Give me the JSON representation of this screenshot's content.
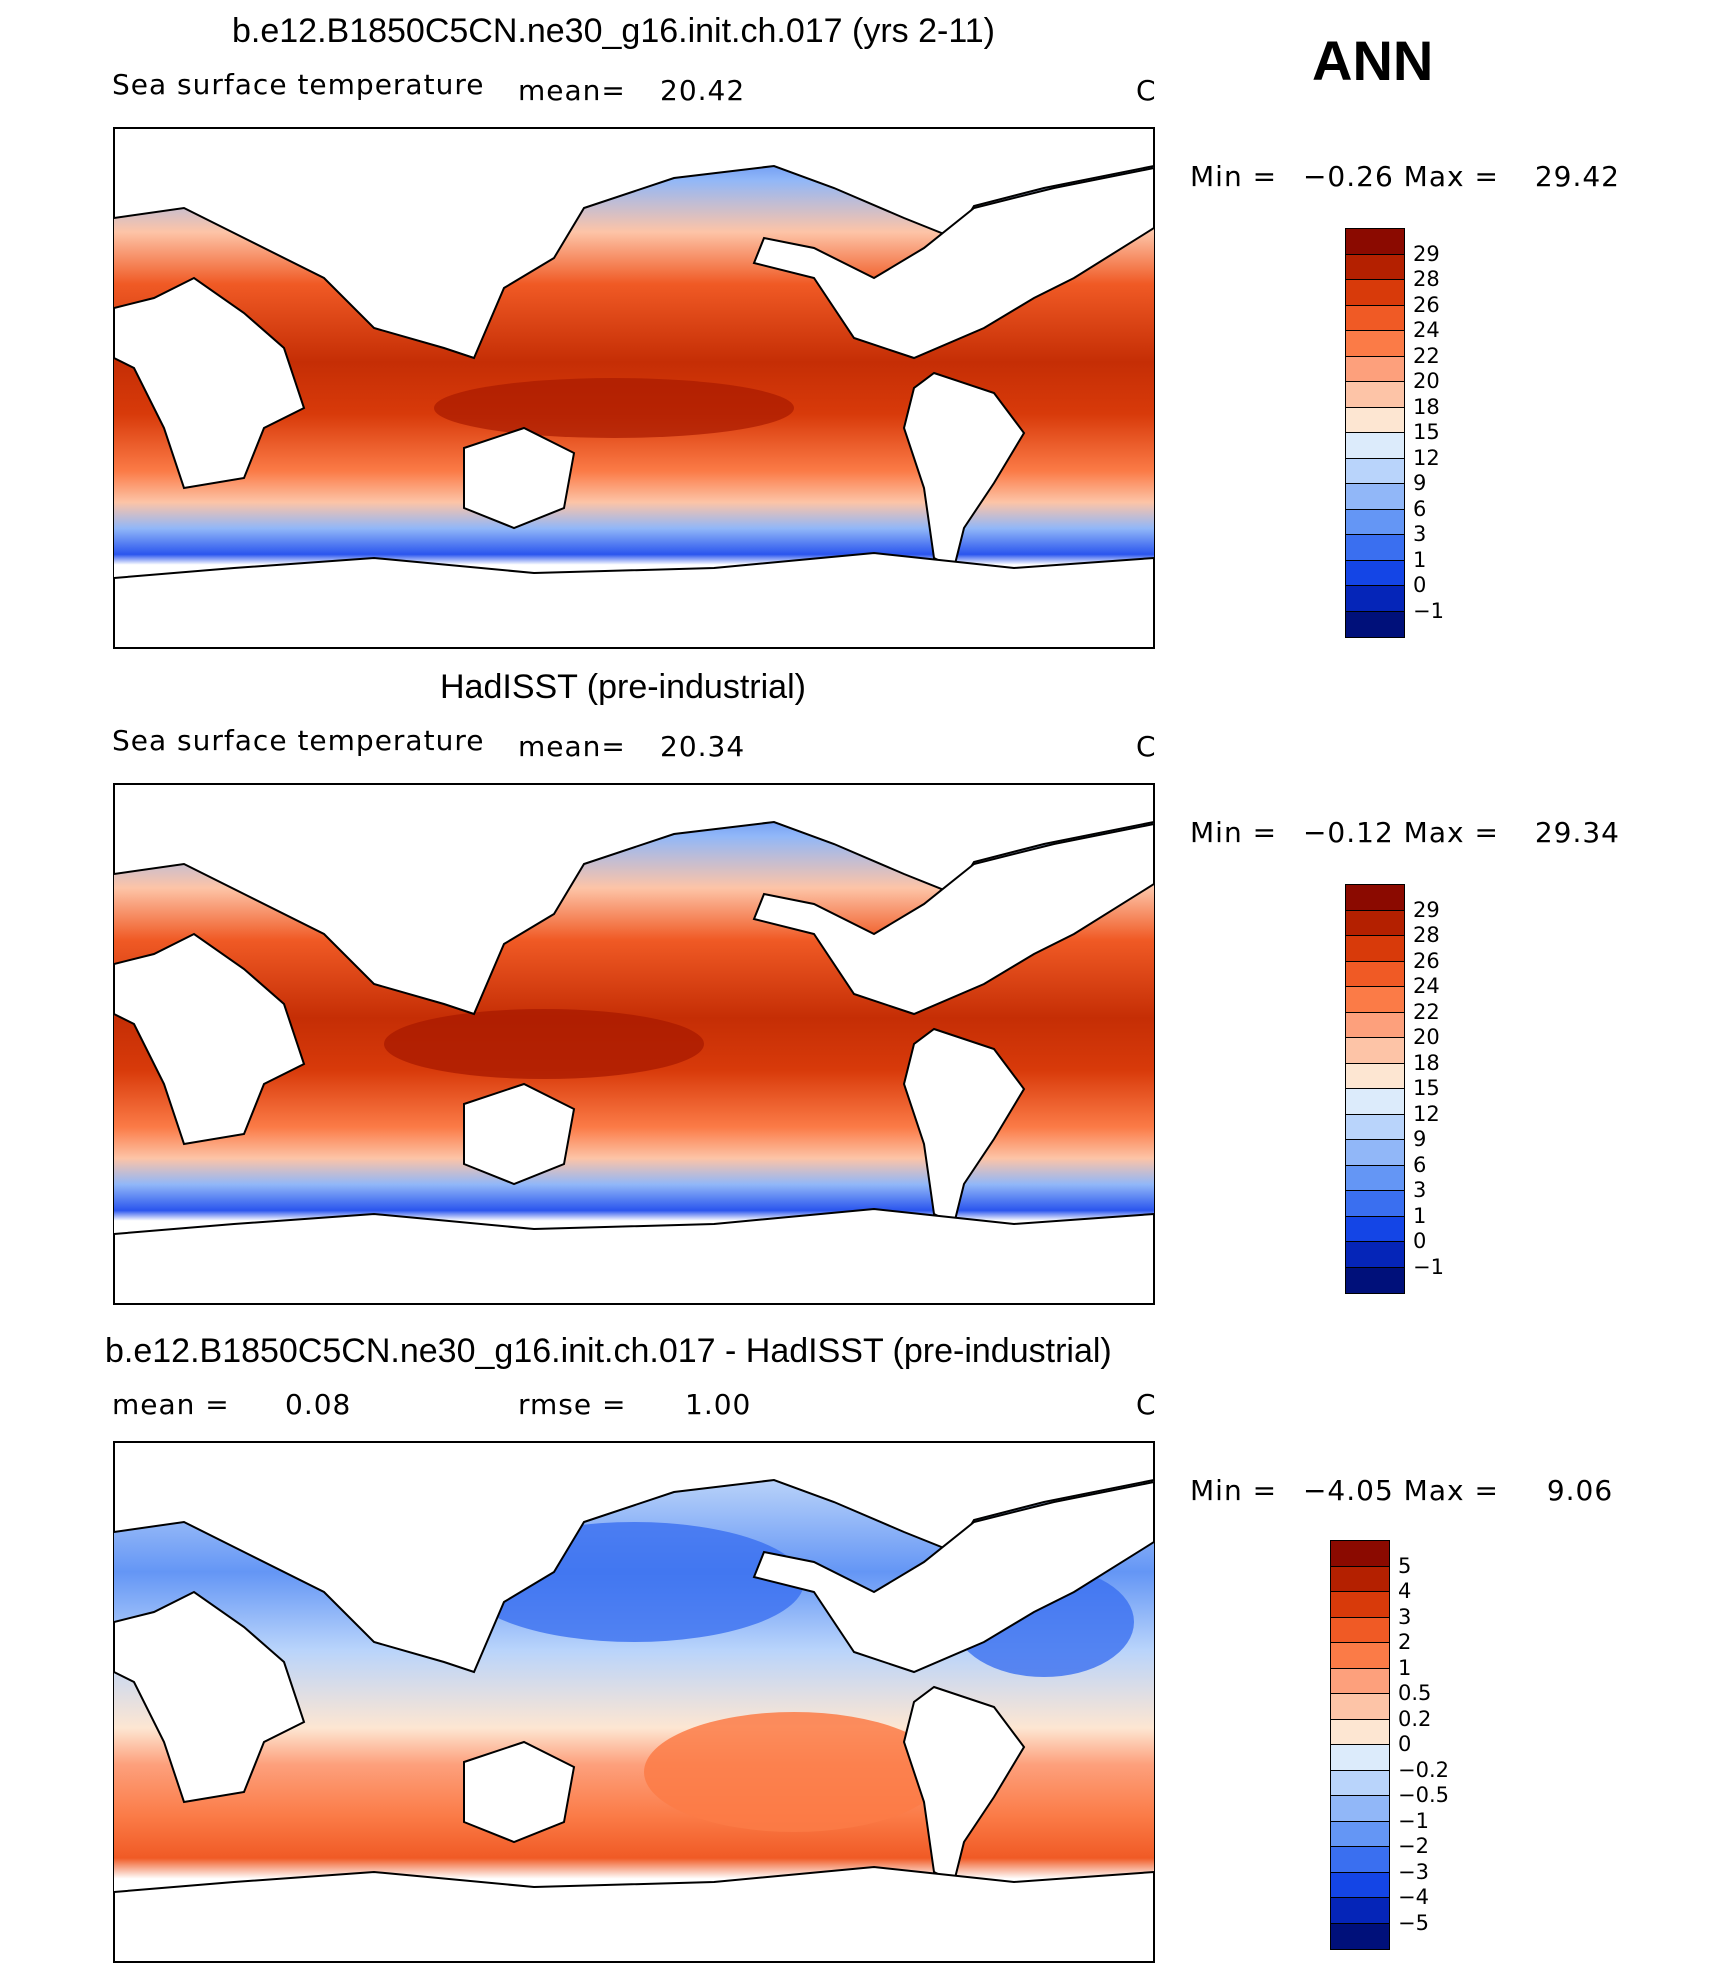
{
  "season": "ANN",
  "panels": [
    {
      "title": "b.e12.B1850C5CN.ne30_g16.init.ch.017 (yrs 2-11)",
      "variable": "Sea surface temperature",
      "stat1_label": "mean=",
      "stat1_value": "20.42",
      "units": "C",
      "minmax": {
        "min_label": "Min =",
        "min": "−0.26",
        "max_label": "Max =",
        "max": "29.42"
      },
      "colorbar": {
        "labels": [
          "29",
          "28",
          "26",
          "24",
          "22",
          "20",
          "18",
          "15",
          "12",
          "9",
          "6",
          "3",
          "1",
          "0",
          "−1"
        ],
        "colors": [
          "#8b0a00",
          "#b42000",
          "#d83a0a",
          "#f05a25",
          "#fb7b47",
          "#fda07c",
          "#fdc4a7",
          "#fde6d2",
          "#dcebfb",
          "#b9d4fb",
          "#91b7f8",
          "#6496f5",
          "#3a6ff0",
          "#1445e6",
          "#0525b8",
          "#00107a"
        ]
      }
    },
    {
      "title": "HadISST (pre-industrial)",
      "variable": "Sea surface temperature",
      "stat1_label": "mean=",
      "stat1_value": "20.34",
      "units": "C",
      "minmax": {
        "min_label": "Min =",
        "min": "−0.12",
        "max_label": "Max =",
        "max": "29.34"
      },
      "colorbar": {
        "labels": [
          "29",
          "28",
          "26",
          "24",
          "22",
          "20",
          "18",
          "15",
          "12",
          "9",
          "6",
          "3",
          "1",
          "0",
          "−1"
        ],
        "colors": [
          "#8b0a00",
          "#b42000",
          "#d83a0a",
          "#f05a25",
          "#fb7b47",
          "#fda07c",
          "#fdc4a7",
          "#fde6d2",
          "#dcebfb",
          "#b9d4fb",
          "#91b7f8",
          "#6496f5",
          "#3a6ff0",
          "#1445e6",
          "#0525b8",
          "#00107a"
        ]
      }
    },
    {
      "title": "b.e12.B1850C5CN.ne30_g16.init.ch.017 - HadISST (pre-industrial)",
      "stat1_label": "mean =",
      "stat1_value": "0.08",
      "stat2_label": "rmse =",
      "stat2_value": "1.00",
      "units": "C",
      "minmax": {
        "min_label": "Min =",
        "min": "−4.05",
        "max_label": "Max =",
        "max": "9.06"
      },
      "colorbar": {
        "labels": [
          "5",
          "4",
          "3",
          "2",
          "1",
          "0.5",
          "0.2",
          "0",
          "−0.2",
          "−0.5",
          "−1",
          "−2",
          "−3",
          "−4",
          "−5"
        ],
        "colors": [
          "#8b0a00",
          "#b42000",
          "#d83a0a",
          "#f05a25",
          "#fb7b47",
          "#fda07c",
          "#fdc4a7",
          "#fde6d2",
          "#dcebfb",
          "#b9d4fb",
          "#91b7f8",
          "#6496f5",
          "#3a6ff0",
          "#1445e6",
          "#0525b8",
          "#00107a"
        ]
      }
    }
  ]
}
